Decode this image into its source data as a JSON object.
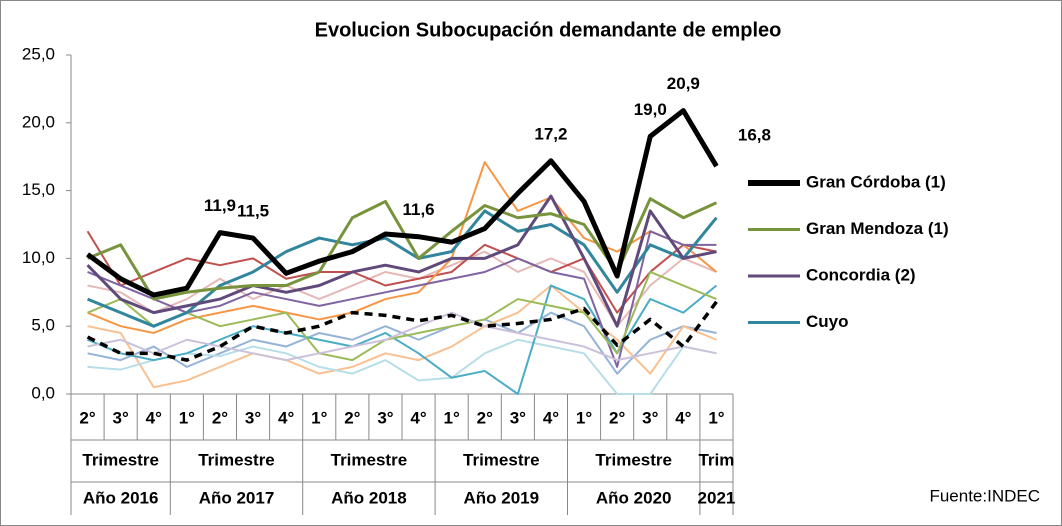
{
  "chart_data": {
    "type": "line",
    "title": "Evolucion Subocupación  demandante de empleo",
    "groups": [
      {
        "label": "Trimestre",
        "year": "Año 2016",
        "categories": [
          "2°",
          "3°",
          "4°"
        ]
      },
      {
        "label": "Trimestre",
        "year": "Año 2017",
        "categories": [
          "1°",
          "2°",
          "3°",
          "4°"
        ]
      },
      {
        "label": "Trimestre",
        "year": "Año 2018",
        "categories": [
          "1°",
          "2°",
          "3°",
          "4°"
        ]
      },
      {
        "label": "Trimestre",
        "year": "Año 2019",
        "categories": [
          "1°",
          "2°",
          "3°",
          "4°"
        ]
      },
      {
        "label": "Trimestre",
        "year": "Año 2020",
        "categories": [
          "1°",
          "2°",
          "3°",
          "4°"
        ]
      },
      {
        "label": "Trim",
        "year": "2021",
        "categories": [
          "1°"
        ]
      }
    ],
    "ylim": [
      0,
      25
    ],
    "yticks": [
      {
        "value": 0,
        "label": "0,0"
      },
      {
        "value": 5,
        "label": "5,0"
      },
      {
        "value": 10,
        "label": "10,0"
      },
      {
        "value": 15,
        "label": "15,0"
      },
      {
        "value": 20,
        "label": "20,0"
      },
      {
        "value": 25,
        "label": "25,0"
      }
    ],
    "background_series": [
      {
        "color": "#e6b9b8",
        "values": [
          8,
          7.5,
          6,
          7,
          8.5,
          7,
          8,
          7,
          8,
          9,
          8.5,
          9.5,
          10.5,
          9,
          10,
          9,
          5,
          8,
          10,
          9
        ]
      },
      {
        "color": "#95b3d7",
        "values": [
          3,
          2.5,
          3.5,
          2,
          3,
          4,
          3.5,
          4.5,
          4,
          5,
          4,
          5,
          5.5,
          4.5,
          6,
          5,
          1.5,
          4,
          5,
          4.5
        ]
      },
      {
        "color": "#fac090",
        "values": [
          5,
          4.5,
          0.5,
          1,
          2,
          3,
          2.5,
          1.5,
          2,
          3,
          2.5,
          3.5,
          5,
          6,
          8,
          6,
          4,
          1.5,
          5,
          4
        ]
      },
      {
        "color": "#b7dee8",
        "values": [
          2,
          1.8,
          2.5,
          3,
          2.8,
          3.5,
          3,
          2,
          1.5,
          2.5,
          1,
          1.2,
          3,
          4,
          3.5,
          3,
          0,
          0,
          3.5,
          3
        ]
      },
      {
        "color": "#c0504d",
        "values": [
          12,
          8,
          9,
          10,
          9.5,
          10,
          8.5,
          9,
          9,
          8,
          8.5,
          9,
          11,
          10,
          9,
          10,
          6,
          9,
          11,
          10.5
        ]
      },
      {
        "color": "#4bacc6",
        "values": [
          4,
          3,
          2.5,
          3,
          4,
          5,
          4.5,
          4,
          3.5,
          4.5,
          3,
          1.2,
          1.7,
          0,
          8,
          7,
          3,
          7,
          6,
          8
        ]
      },
      {
        "color": "#f79646",
        "values": [
          6,
          5,
          4.5,
          5.5,
          6,
          6.5,
          6,
          5.5,
          6,
          7,
          7.5,
          10,
          17.1,
          13.5,
          14.5,
          11.5,
          10.5,
          12,
          11,
          9
        ]
      },
      {
        "color": "#8064a2",
        "values": [
          9,
          8,
          7,
          6,
          6.5,
          7.5,
          7,
          6.5,
          7,
          7.5,
          8,
          8.5,
          9,
          10,
          9,
          8.5,
          2,
          12,
          11,
          11
        ]
      },
      {
        "color": "#9bbb59",
        "values": [
          6,
          7,
          5,
          6,
          5,
          5.5,
          6,
          3,
          2.5,
          4,
          4.5,
          5,
          5.5,
          7,
          6.5,
          6,
          3,
          9,
          8,
          7
        ]
      },
      {
        "color": "#ccc1da",
        "values": [
          3.5,
          4,
          3,
          4,
          3.5,
          3,
          2.5,
          3,
          3.5,
          4,
          5,
          6,
          5,
          4.5,
          4,
          3.5,
          2.5,
          3,
          3.5,
          3
        ]
      }
    ],
    "dashed_series": {
      "color": "#000000",
      "values": [
        4.2,
        3,
        3,
        2.5,
        3.5,
        5,
        4.5,
        5,
        6,
        5.8,
        5.4,
        5.8,
        5,
        5.2,
        5.5,
        6.3,
        3.6,
        5.5,
        3.5,
        6.8
      ]
    },
    "series": [
      {
        "name": "Gran Córdoba (1)",
        "color": "#000000",
        "values": [
          10.3,
          8.5,
          7.3,
          7.8,
          11.9,
          11.5,
          8.9,
          9.8,
          10.5,
          11.8,
          11.6,
          11.2,
          12.2,
          14.8,
          17.2,
          14.2,
          8.7,
          19.0,
          20.9,
          16.8
        ],
        "value_labels": [
          null,
          null,
          null,
          null,
          "11,9",
          "11,5",
          null,
          null,
          null,
          null,
          "11,6",
          null,
          null,
          null,
          "17,2",
          null,
          null,
          "19,0",
          "20,9",
          "16,8"
        ]
      },
      {
        "name": "Gran Mendoza  (1)",
        "color": "#77933c",
        "values": [
          10,
          11,
          7,
          7.5,
          7.8,
          8,
          8,
          9,
          13,
          14.2,
          10,
          12,
          13.9,
          13,
          13.3,
          12.5,
          9,
          14.4,
          13,
          14.1
        ]
      },
      {
        "name": "Concordia (2)",
        "color": "#604a7b",
        "values": [
          9.5,
          7,
          6,
          6.5,
          7,
          8,
          7.5,
          8,
          9,
          9.5,
          9,
          10,
          10,
          11,
          14.6,
          10,
          5,
          13.5,
          10,
          10.5
        ]
      },
      {
        "name": "Cuyo",
        "color": "#31859c",
        "values": [
          7,
          6,
          5,
          6,
          8,
          9,
          10.5,
          11.5,
          11,
          11.5,
          10,
          10.5,
          13.5,
          12,
          12.5,
          11,
          7.5,
          11,
          10,
          13
        ]
      }
    ],
    "source": "Fuente:INDEC"
  }
}
